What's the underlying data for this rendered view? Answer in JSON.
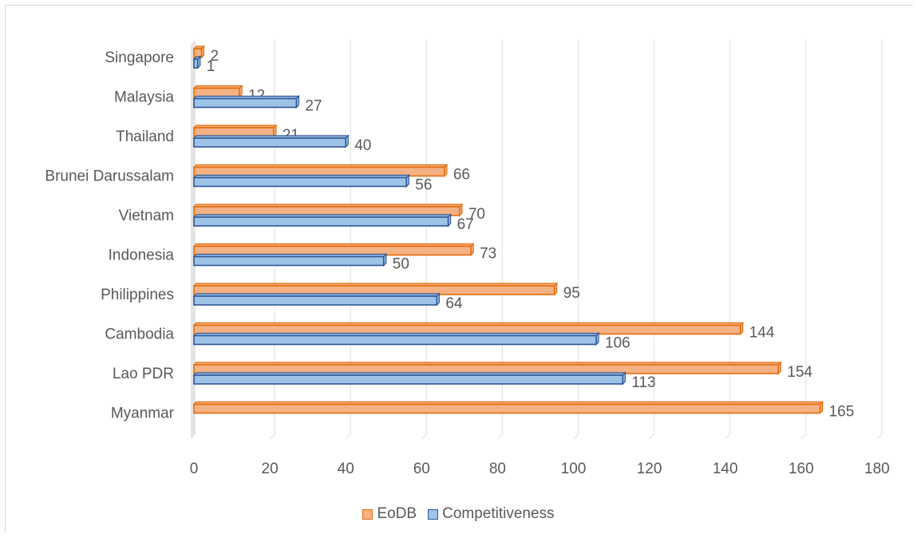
{
  "chart_data": {
    "type": "bar",
    "orientation": "horizontal",
    "categories": [
      "Singapore",
      "Malaysia",
      "Thailand",
      "Brunei Darussalam",
      "Vietnam",
      "Indonesia",
      "Philippines",
      "Cambodia",
      "Lao PDR",
      "Myanmar"
    ],
    "series": [
      {
        "name": "EoDB",
        "values": [
          2,
          12,
          21,
          66,
          70,
          73,
          95,
          144,
          154,
          165
        ],
        "color": "#f4b183",
        "edge": "#e46c0a"
      },
      {
        "name": "Competitiveness",
        "values": [
          1,
          27,
          40,
          56,
          67,
          50,
          64,
          106,
          113,
          null
        ],
        "color": "#9dc3e6",
        "edge": "#2f5597"
      }
    ],
    "x_ticks": [
      "0",
      "20",
      "40",
      "60",
      "80",
      "100",
      "120",
      "140",
      "160",
      "180"
    ],
    "xlim": [
      0,
      180
    ],
    "grid": true,
    "legend_position": "bottom",
    "data_labels": true
  }
}
